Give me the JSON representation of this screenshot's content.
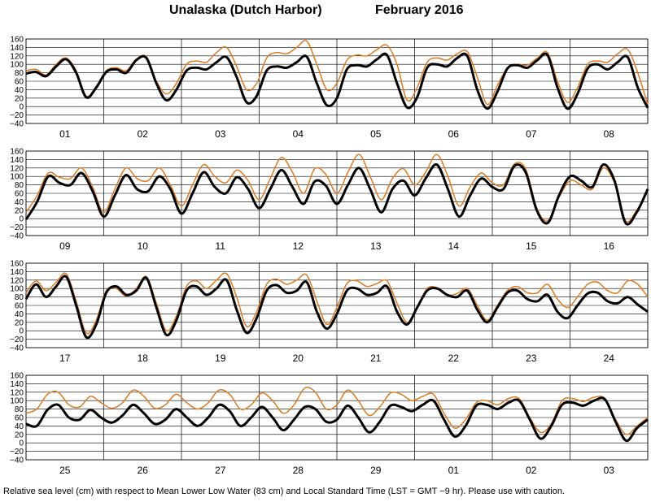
{
  "title": {
    "location": "Unalaska (Dutch Harbor)",
    "month": "February   2016"
  },
  "footnote": "Relative sea level (cm) with respect to Mean Lower Low Water (83 cm) and Local Standard Time (LST = GMT −9 hr). Please use with caution.",
  "colors": {
    "observed": "#000000",
    "predicted": "#e07a1f",
    "grid": "#000000",
    "background": "#ffffff"
  },
  "chart_data": {
    "type": "line",
    "yticks": [
      "160",
      "140",
      "120",
      "100",
      "80",
      "60",
      "40",
      "20",
      "0",
      "−40"
    ],
    "yticks_minus20": "−20",
    "ylim": [
      -40,
      160
    ],
    "grid": true,
    "series_names": [
      "observed",
      "predicted"
    ],
    "panels": [
      {
        "days": [
          "01",
          "02",
          "03",
          "04",
          "05",
          "06",
          "07",
          "08"
        ],
        "observed": [
          78,
          82,
          72,
          95,
          112,
          80,
          22,
          45,
          82,
          88,
          80,
          110,
          115,
          55,
          15,
          40,
          85,
          92,
          88,
          105,
          117,
          70,
          10,
          25,
          85,
          95,
          92,
          105,
          118,
          55,
          3,
          20,
          88,
          98,
          95,
          112,
          122,
          55,
          -2,
          22,
          92,
          100,
          95,
          115,
          120,
          40,
          -5,
          35,
          90,
          98,
          92,
          110,
          122,
          45,
          -5,
          30,
          90,
          100,
          88,
          105,
          117,
          45,
          -3
        ],
        "predicted": [
          85,
          88,
          75,
          100,
          115,
          85,
          25,
          48,
          85,
          92,
          85,
          112,
          118,
          60,
          30,
          55,
          100,
          108,
          105,
          128,
          140,
          95,
          40,
          55,
          115,
          128,
          125,
          140,
          155,
          100,
          40,
          55,
          110,
          122,
          120,
          135,
          145,
          100,
          15,
          45,
          105,
          115,
          110,
          125,
          130,
          70,
          5,
          50,
          92,
          100,
          98,
          115,
          128,
          60,
          10,
          45,
          100,
          108,
          105,
          125,
          135,
          80,
          5
        ]
      },
      {
        "days": [
          "09",
          "10",
          "11",
          "12",
          "13",
          "14",
          "15",
          "16"
        ],
        "observed": [
          -2,
          40,
          100,
          85,
          80,
          108,
          65,
          5,
          55,
          103,
          70,
          65,
          100,
          70,
          12,
          60,
          110,
          75,
          60,
          98,
          70,
          25,
          70,
          115,
          75,
          35,
          88,
          78,
          35,
          80,
          120,
          70,
          15,
          70,
          90,
          55,
          95,
          128,
          70,
          5,
          55,
          95,
          75,
          70,
          125,
          110,
          20,
          -10,
          55,
          100,
          90,
          75,
          128,
          90,
          -10,
          15,
          70
        ],
        "predicted": [
          15,
          55,
          108,
          98,
          95,
          120,
          75,
          15,
          70,
          120,
          95,
          90,
          120,
          80,
          30,
          80,
          128,
          100,
          85,
          115,
          90,
          45,
          95,
          145,
          110,
          60,
          118,
          105,
          60,
          110,
          152,
          100,
          45,
          95,
          118,
          80,
          110,
          152,
          100,
          30,
          75,
          108,
          85,
          80,
          130,
          118,
          25,
          -5,
          50,
          90,
          80,
          70,
          120,
          85,
          -5,
          20,
          65
        ]
      },
      {
        "days": [
          "17",
          "18",
          "19",
          "20",
          "21",
          "22",
          "23",
          "24"
        ],
        "observed": [
          75,
          110,
          80,
          105,
          128,
          60,
          -15,
          15,
          90,
          105,
          85,
          95,
          125,
          55,
          -10,
          25,
          95,
          105,
          85,
          100,
          120,
          50,
          -5,
          30,
          95,
          108,
          90,
          95,
          115,
          45,
          5,
          40,
          95,
          100,
          85,
          90,
          105,
          45,
          15,
          55,
          95,
          100,
          85,
          80,
          95,
          50,
          20,
          55,
          90,
          95,
          75,
          70,
          85,
          45,
          30,
          60,
          88,
          90,
          70,
          65,
          80,
          62,
          45
        ],
        "predicted": [
          90,
          118,
          95,
          115,
          135,
          70,
          -5,
          25,
          95,
          100,
          82,
          100,
          128,
          65,
          0,
          35,
          105,
          118,
          100,
          120,
          135,
          80,
          10,
          45,
          110,
          122,
          110,
          120,
          132,
          70,
          15,
          55,
          112,
          118,
          105,
          112,
          118,
          65,
          20,
          55,
          100,
          102,
          85,
          88,
          100,
          60,
          25,
          60,
          95,
          105,
          90,
          90,
          110,
          75,
          55,
          80,
          110,
          115,
          95,
          90,
          118,
          110,
          80
        ]
      },
      {
        "days": [
          "25",
          "26",
          "27",
          "28",
          "29",
          "01",
          "02",
          "03"
        ],
        "observed": [
          45,
          40,
          78,
          90,
          60,
          55,
          78,
          60,
          48,
          65,
          90,
          70,
          45,
          55,
          80,
          60,
          40,
          60,
          90,
          75,
          40,
          60,
          85,
          60,
          30,
          55,
          85,
          80,
          50,
          55,
          88,
          60,
          25,
          50,
          88,
          85,
          75,
          90,
          100,
          55,
          15,
          40,
          88,
          90,
          80,
          95,
          100,
          55,
          10,
          40,
          90,
          95,
          88,
          100,
          103,
          50,
          5,
          35,
          55
        ],
        "predicted": [
          70,
          80,
          115,
          120,
          90,
          85,
          110,
          95,
          82,
          95,
          125,
          110,
          82,
          90,
          115,
          95,
          80,
          95,
          125,
          115,
          80,
          90,
          118,
          100,
          70,
          90,
          130,
          120,
          80,
          90,
          125,
          100,
          65,
          85,
          118,
          115,
          100,
          110,
          115,
          70,
          35,
          55,
          95,
          100,
          90,
          105,
          105,
          60,
          25,
          45,
          100,
          105,
          98,
          108,
          105,
          55,
          20,
          40,
          60
        ]
      }
    ]
  }
}
